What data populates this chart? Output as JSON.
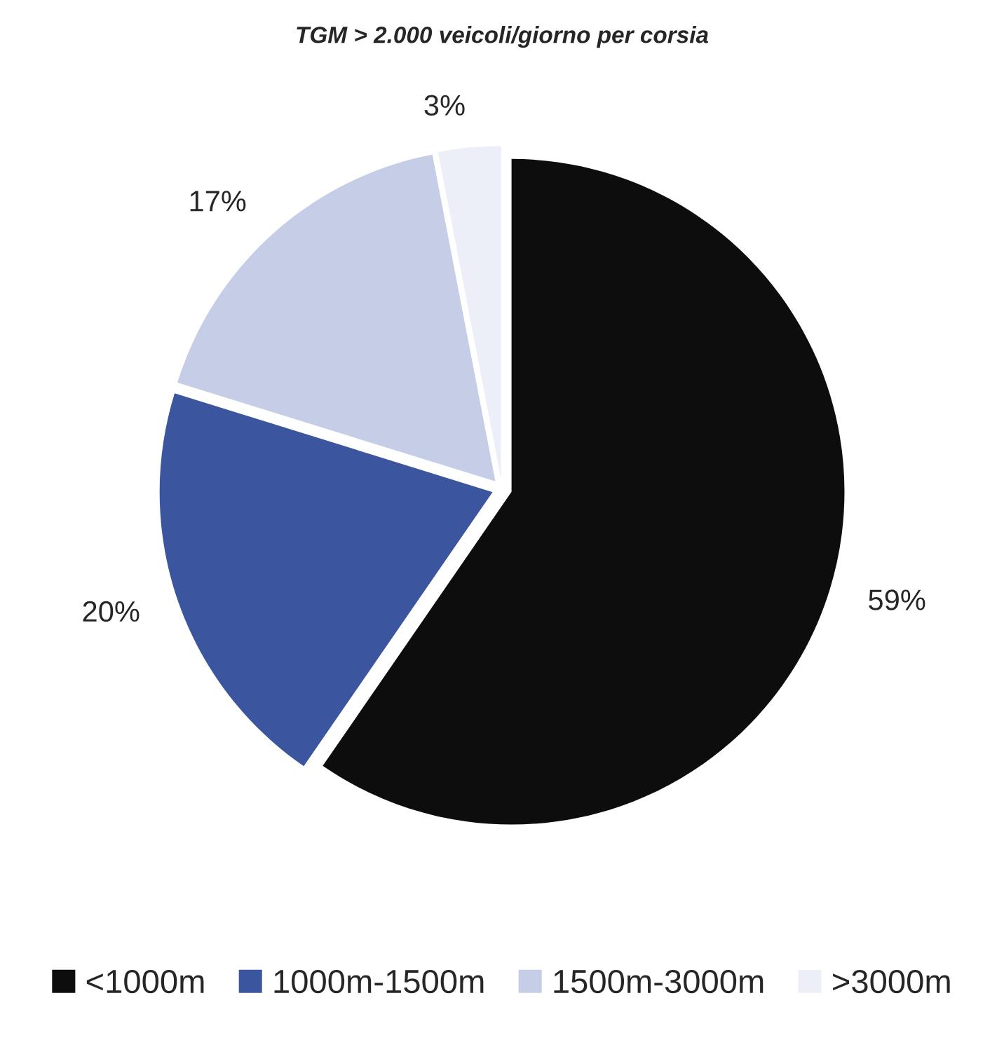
{
  "chart_data": {
    "type": "pie",
    "title": "TGM > 2.000 veicoli/giorno per corsia",
    "categories": [
      "<1000m",
      "1000m-1500m",
      "1500m-3000m",
      ">3000m"
    ],
    "values": [
      59,
      20,
      17,
      3
    ],
    "value_labels": [
      "59%",
      "20%",
      "17%",
      "3%"
    ],
    "colors": [
      "#0d0d0d",
      "#3b569e",
      "#c6cde6",
      "#eceff7"
    ],
    "legend": "bottom"
  }
}
